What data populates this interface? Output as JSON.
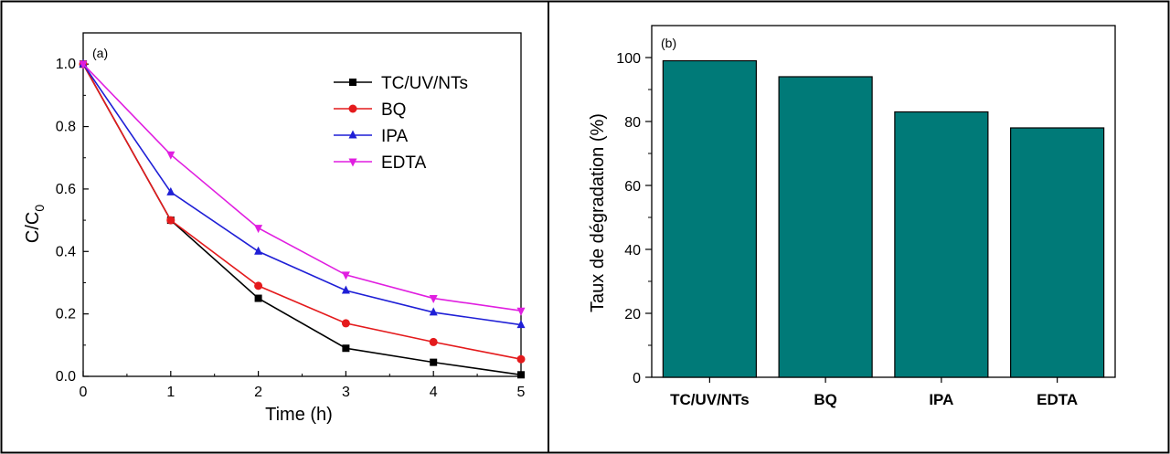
{
  "chart_data": [
    {
      "type": "line",
      "panel_label": "(a)",
      "xlabel": "Time (h)",
      "ylabel": "C/C",
      "ylabel_sub": "0",
      "xlim": [
        0,
        5
      ],
      "ylim": [
        0,
        1.1
      ],
      "x_ticks": [
        0,
        1,
        2,
        3,
        4,
        5
      ],
      "x_tick_labels": [
        "0",
        "1",
        "2",
        "3",
        "4",
        "5"
      ],
      "y_ticks": [
        0,
        0.2,
        0.4,
        0.6,
        0.8,
        1.0
      ],
      "y_tick_labels": [
        "0.0",
        "0.2",
        "0.4",
        "0.6",
        "0.8",
        "1.0"
      ],
      "legend_position": "top-right",
      "x": [
        0,
        1,
        2,
        3,
        4,
        5
      ],
      "series": [
        {
          "name": "TC/UV/NTs",
          "color": "#000000",
          "marker": "square",
          "values": [
            1.0,
            0.5,
            0.25,
            0.09,
            0.045,
            0.005
          ]
        },
        {
          "name": "BQ",
          "color": "#e41a1c",
          "marker": "circle",
          "values": [
            1.0,
            0.5,
            0.29,
            0.17,
            0.11,
            0.055
          ]
        },
        {
          "name": "IPA",
          "color": "#1f1fd6",
          "marker": "triangle-up",
          "values": [
            1.0,
            0.59,
            0.4,
            0.275,
            0.205,
            0.165
          ]
        },
        {
          "name": "EDTA",
          "color": "#e01ee0",
          "marker": "triangle-down",
          "values": [
            1.0,
            0.71,
            0.475,
            0.325,
            0.25,
            0.21
          ]
        }
      ]
    },
    {
      "type": "bar",
      "panel_label": "(b)",
      "xlabel": "",
      "ylabel": "Taux de dégradation (%)",
      "ylim": [
        0,
        110
      ],
      "y_ticks": [
        0,
        20,
        40,
        60,
        80,
        100
      ],
      "y_tick_labels": [
        "0",
        "20",
        "40",
        "60",
        "80",
        "100"
      ],
      "categories": [
        "TC/UV/NTs",
        "BQ",
        "IPA",
        "EDTA"
      ],
      "values": [
        99,
        94,
        83,
        78
      ],
      "bar_color": "#007a78"
    }
  ]
}
